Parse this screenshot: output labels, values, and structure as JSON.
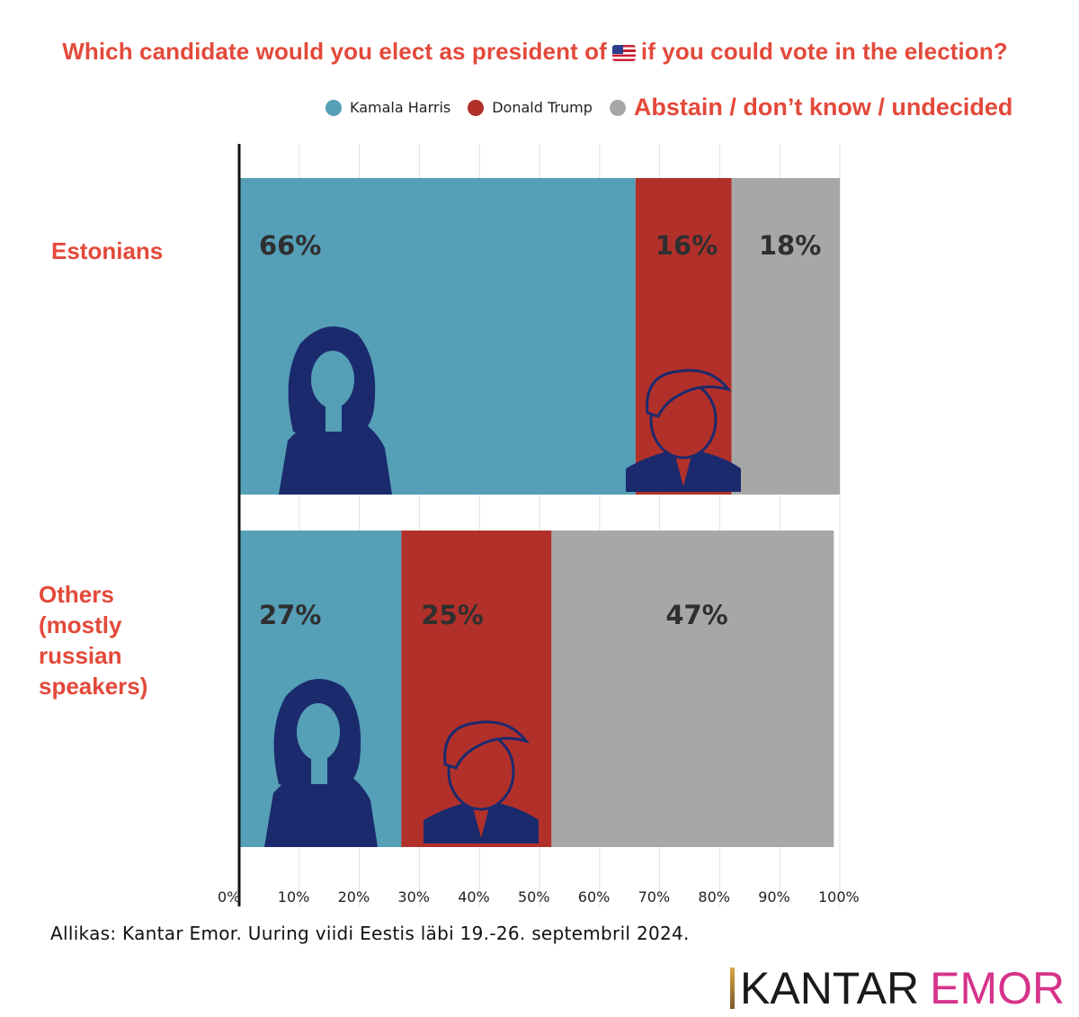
{
  "chart_data": {
    "type": "bar",
    "orientation": "horizontal",
    "stacked": true,
    "title_before_flag": "Which candidate would you elect as president of",
    "title_after_flag": "if you could vote in the election?",
    "flag_icon": "us-flag-icon",
    "categories": [
      "Estonians",
      "Others\n(mostly\nrussian\nspeakers)"
    ],
    "series": [
      {
        "name": "Kamala Harris",
        "color": "#559fb7",
        "values": [
          66,
          27
        ],
        "labels": [
          "66%",
          "27%"
        ]
      },
      {
        "name": "Donald Trump",
        "color": "#b2302a",
        "values": [
          16,
          25
        ],
        "labels": [
          "16%",
          "25%"
        ]
      },
      {
        "name": "Abstain / don’t know / undecided",
        "color": "#a7a7a7",
        "values": [
          18,
          47
        ],
        "labels": [
          "18%",
          "47%"
        ]
      }
    ],
    "xlim": [
      0,
      100
    ],
    "x_ticks": [
      0,
      10,
      20,
      30,
      40,
      50,
      60,
      70,
      80,
      90,
      100
    ],
    "x_tick_labels": [
      "0%",
      "10%",
      "20%",
      "30%",
      "40%",
      "50%",
      "60%",
      "70%",
      "80%",
      "90%",
      "100%"
    ],
    "grid": true,
    "legend_position": "top-right",
    "illustrations": [
      "harris-portrait-icon",
      "trump-portrait-icon"
    ]
  },
  "source": "Allikas: Kantar Emor. Uuring viidi Eestis läbi 19.-26. septembril 2024.",
  "brand": {
    "part1": "KANTAR",
    "part2": "EMOR"
  }
}
